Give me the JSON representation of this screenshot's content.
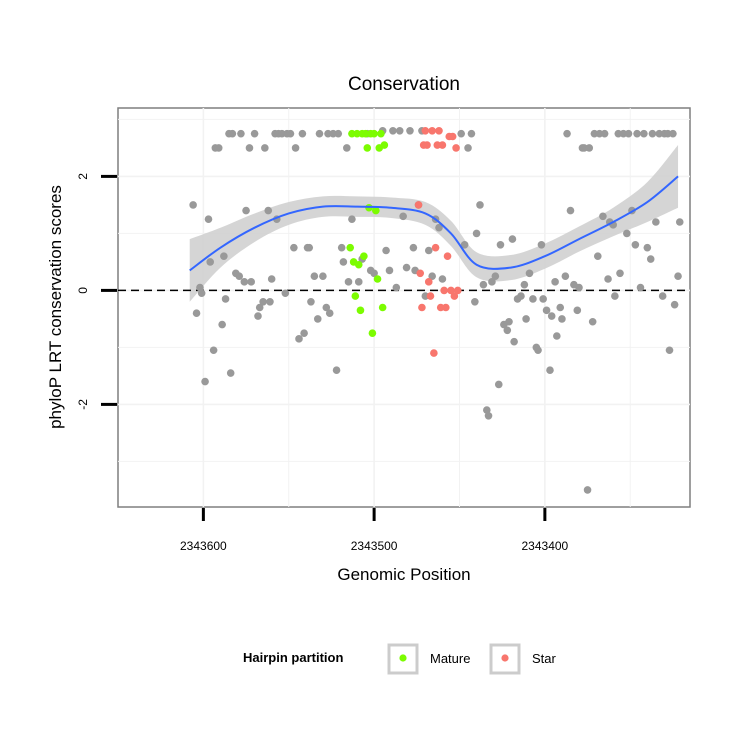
{
  "chart_data": {
    "type": "scatter",
    "title": "Conservation",
    "xlabel": "Genomic Position",
    "ylabel": "phyloP LRT conservation scores",
    "x_reversed": true,
    "xlim": [
      2343650,
      2343315
    ],
    "ylim": [
      -3.8,
      3.2
    ],
    "xticks": [
      2343600,
      2343500,
      2343400
    ],
    "yticks": [
      -2,
      0,
      2
    ],
    "grid": true,
    "reference_line": {
      "y": 0,
      "style": "dashed"
    },
    "legend": {
      "title": "Hairpin partition",
      "position": "bottom",
      "entries": [
        {
          "label": "Mature",
          "color": "#7CFC00"
        },
        {
          "label": "Star",
          "color": "#F8766D"
        }
      ]
    },
    "colors": {
      "other": "#999999",
      "mature": "#7CFC00",
      "star": "#F8766D",
      "smooth": "#3366FF",
      "band": "#D0D0D0"
    },
    "series": [
      {
        "group": "other",
        "points": [
          [
            2343606,
            1.5
          ],
          [
            2343604,
            -0.4
          ],
          [
            2343602,
            0.05
          ],
          [
            2343601,
            -0.05
          ],
          [
            2343599,
            -1.6
          ],
          [
            2343597,
            1.25
          ],
          [
            2343596,
            0.5
          ],
          [
            2343594,
            -1.05
          ],
          [
            2343593,
            2.5
          ],
          [
            2343591,
            2.5
          ],
          [
            2343589,
            -0.6
          ],
          [
            2343588,
            0.6
          ],
          [
            2343587,
            -0.15
          ],
          [
            2343585,
            2.75
          ],
          [
            2343584,
            -1.45
          ],
          [
            2343583,
            2.75
          ],
          [
            2343581,
            0.3
          ],
          [
            2343579,
            0.25
          ],
          [
            2343578,
            2.75
          ],
          [
            2343576,
            0.15
          ],
          [
            2343575,
            1.4
          ],
          [
            2343573,
            2.5
          ],
          [
            2343572,
            0.15
          ],
          [
            2343570,
            2.75
          ],
          [
            2343568,
            -0.45
          ],
          [
            2343567,
            -0.3
          ],
          [
            2343565,
            -0.2
          ],
          [
            2343564,
            2.5
          ],
          [
            2343562,
            1.4
          ],
          [
            2343561,
            -0.2
          ],
          [
            2343560,
            0.2
          ],
          [
            2343558,
            2.75
          ],
          [
            2343557,
            1.25
          ],
          [
            2343556,
            2.75
          ],
          [
            2343554,
            2.75
          ],
          [
            2343552,
            -0.05
          ],
          [
            2343551,
            2.75
          ],
          [
            2343549,
            2.75
          ],
          [
            2343547,
            0.75
          ],
          [
            2343546,
            2.5
          ],
          [
            2343544,
            -0.85
          ],
          [
            2343542,
            2.75
          ],
          [
            2343541,
            -0.75
          ],
          [
            2343539,
            0.75
          ],
          [
            2343538,
            0.75
          ],
          [
            2343537,
            -0.2
          ],
          [
            2343535,
            0.25
          ],
          [
            2343533,
            -0.5
          ],
          [
            2343532,
            2.75
          ],
          [
            2343530,
            0.25
          ],
          [
            2343528,
            -0.3
          ],
          [
            2343527,
            2.75
          ],
          [
            2343526,
            -0.4
          ],
          [
            2343524,
            2.75
          ],
          [
            2343522,
            -1.4
          ],
          [
            2343521,
            2.75
          ],
          [
            2343519,
            0.75
          ],
          [
            2343518,
            0.5
          ],
          [
            2343516,
            2.5
          ],
          [
            2343515,
            0.15
          ],
          [
            2343513,
            1.25
          ],
          [
            2343509,
            0.15
          ],
          [
            2343507,
            0.55
          ],
          [
            2343504,
            2.75
          ],
          [
            2343502,
            0.35
          ],
          [
            2343500,
            0.3
          ],
          [
            2343495,
            2.8
          ],
          [
            2343493,
            0.7
          ],
          [
            2343491,
            0.35
          ],
          [
            2343489,
            2.8
          ],
          [
            2343487,
            0.05
          ],
          [
            2343485,
            2.8
          ],
          [
            2343483,
            1.3
          ],
          [
            2343481,
            0.4
          ],
          [
            2343479,
            2.8
          ],
          [
            2343477,
            0.75
          ],
          [
            2343476,
            0.35
          ],
          [
            2343474,
            1.5
          ],
          [
            2343472,
            2.8
          ],
          [
            2343470,
            -0.1
          ],
          [
            2343468,
            0.7
          ],
          [
            2343466,
            0.25
          ],
          [
            2343464,
            1.25
          ],
          [
            2343462,
            1.1
          ],
          [
            2343460,
            0.2
          ],
          [
            2343449,
            2.75
          ],
          [
            2343447,
            0.8
          ],
          [
            2343445,
            2.5
          ],
          [
            2343443,
            2.75
          ],
          [
            2343441,
            -0.2
          ],
          [
            2343440,
            1.0
          ],
          [
            2343438,
            1.5
          ],
          [
            2343436,
            0.1
          ],
          [
            2343434,
            -2.1
          ],
          [
            2343433,
            -2.2
          ],
          [
            2343431,
            0.15
          ],
          [
            2343429,
            0.25
          ],
          [
            2343427,
            -1.65
          ],
          [
            2343426,
            0.8
          ],
          [
            2343424,
            -0.6
          ],
          [
            2343422,
            -0.7
          ],
          [
            2343421,
            -0.55
          ],
          [
            2343419,
            0.9
          ],
          [
            2343418,
            -0.9
          ],
          [
            2343416,
            -0.15
          ],
          [
            2343414,
            -0.1
          ],
          [
            2343412,
            0.1
          ],
          [
            2343411,
            -0.5
          ],
          [
            2343409,
            0.3
          ],
          [
            2343407,
            -0.15
          ],
          [
            2343405,
            -1.0
          ],
          [
            2343404,
            -1.05
          ],
          [
            2343402,
            0.8
          ],
          [
            2343401,
            -0.15
          ],
          [
            2343399,
            -0.35
          ],
          [
            2343397,
            -1.4
          ],
          [
            2343396,
            -0.45
          ],
          [
            2343394,
            0.15
          ],
          [
            2343393,
            -0.8
          ],
          [
            2343391,
            -0.3
          ],
          [
            2343390,
            -0.5
          ],
          [
            2343388,
            0.25
          ],
          [
            2343387,
            2.75
          ],
          [
            2343385,
            1.4
          ],
          [
            2343383,
            0.1
          ],
          [
            2343381,
            -0.35
          ],
          [
            2343380,
            0.05
          ],
          [
            2343378,
            2.5
          ],
          [
            2343377,
            2.5
          ],
          [
            2343375,
            -3.5
          ],
          [
            2343374,
            2.5
          ],
          [
            2343372,
            -0.55
          ],
          [
            2343371,
            2.75
          ],
          [
            2343369,
            0.6
          ],
          [
            2343368,
            2.75
          ],
          [
            2343366,
            1.3
          ],
          [
            2343365,
            2.75
          ],
          [
            2343363,
            0.2
          ],
          [
            2343362,
            1.2
          ],
          [
            2343360,
            1.15
          ],
          [
            2343359,
            -0.1
          ],
          [
            2343357,
            2.75
          ],
          [
            2343356,
            0.3
          ],
          [
            2343354,
            2.75
          ],
          [
            2343352,
            1.0
          ],
          [
            2343351,
            2.75
          ],
          [
            2343349,
            1.4
          ],
          [
            2343347,
            0.8
          ],
          [
            2343346,
            2.75
          ],
          [
            2343344,
            0.05
          ],
          [
            2343342,
            2.75
          ],
          [
            2343340,
            0.75
          ],
          [
            2343338,
            0.55
          ],
          [
            2343337,
            2.75
          ],
          [
            2343335,
            1.2
          ],
          [
            2343333,
            2.75
          ],
          [
            2343331,
            -0.1
          ],
          [
            2343330,
            2.75
          ],
          [
            2343328,
            2.75
          ],
          [
            2343327,
            -1.05
          ],
          [
            2343325,
            2.75
          ],
          [
            2343324,
            -0.25
          ],
          [
            2343322,
            0.25
          ],
          [
            2343321,
            1.2
          ]
        ]
      },
      {
        "group": "mature",
        "name": "Mature",
        "points": [
          [
            2343514,
            0.75
          ],
          [
            2343513,
            2.75
          ],
          [
            2343512,
            0.5
          ],
          [
            2343511,
            -0.1
          ],
          [
            2343510,
            2.75
          ],
          [
            2343509,
            0.45
          ],
          [
            2343508,
            -0.35
          ],
          [
            2343507,
            2.75
          ],
          [
            2343506,
            0.6
          ],
          [
            2343505,
            2.75
          ],
          [
            2343504,
            2.5
          ],
          [
            2343503,
            1.45
          ],
          [
            2343502,
            2.75
          ],
          [
            2343501,
            -0.75
          ],
          [
            2343500,
            2.75
          ],
          [
            2343499,
            1.4
          ],
          [
            2343498,
            0.2
          ],
          [
            2343497,
            2.5
          ],
          [
            2343496,
            2.75
          ],
          [
            2343495,
            -0.3
          ],
          [
            2343494,
            2.55
          ]
        ]
      },
      {
        "group": "star",
        "name": "Star",
        "points": [
          [
            2343474,
            1.5
          ],
          [
            2343473,
            0.3
          ],
          [
            2343472,
            -0.3
          ],
          [
            2343471,
            2.55
          ],
          [
            2343470,
            2.8
          ],
          [
            2343469,
            2.55
          ],
          [
            2343468,
            0.15
          ],
          [
            2343467,
            -0.1
          ],
          [
            2343466,
            2.8
          ],
          [
            2343465,
            -1.1
          ],
          [
            2343464,
            0.75
          ],
          [
            2343463,
            2.55
          ],
          [
            2343462,
            2.8
          ],
          [
            2343461,
            -0.3
          ],
          [
            2343460,
            2.55
          ],
          [
            2343459,
            0.0
          ],
          [
            2343458,
            -0.3
          ],
          [
            2343457,
            0.6
          ],
          [
            2343456,
            2.7
          ],
          [
            2343455,
            0.0
          ],
          [
            2343454,
            2.7
          ],
          [
            2343453,
            -0.1
          ],
          [
            2343452,
            2.5
          ],
          [
            2343451,
            0.0
          ]
        ]
      }
    ],
    "smooth": {
      "x": [
        2343608,
        2343590,
        2343570,
        2343550,
        2343530,
        2343510,
        2343490,
        2343470,
        2343455,
        2343440,
        2343420,
        2343400,
        2343380,
        2343360,
        2343340,
        2343322
      ],
      "y": [
        0.35,
        0.75,
        1.1,
        1.35,
        1.47,
        1.47,
        1.45,
        1.35,
        1.0,
        0.45,
        0.4,
        0.6,
        0.9,
        1.2,
        1.55,
        2.0
      ],
      "band": [
        0.55,
        0.35,
        0.25,
        0.2,
        0.18,
        0.18,
        0.18,
        0.2,
        0.22,
        0.22,
        0.22,
        0.22,
        0.22,
        0.25,
        0.35,
        0.55
      ]
    }
  }
}
